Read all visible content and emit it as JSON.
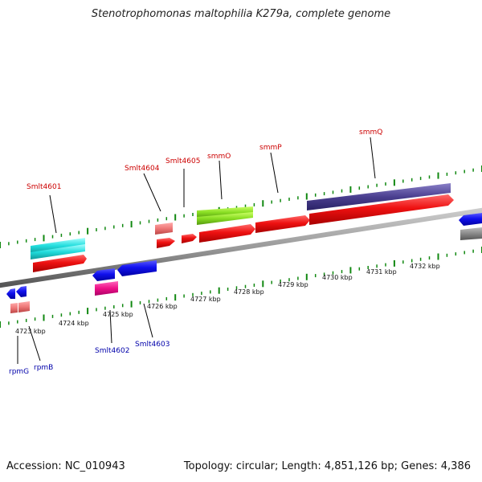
{
  "title": "Stenotrophomonas maltophilia K279a, complete genome",
  "accession": "Accession: NC_010943",
  "summary": "Topology: circular; Length: 4,851,126 bp; Genes: 4,386",
  "scale_labels": [
    "4723 kbp",
    "4724 kbp",
    "4725 kbp",
    "4726 kbp",
    "4727 kbp",
    "4728 kbp",
    "4729 kbp",
    "4730 kbp",
    "4731 kbp",
    "4732 kbp"
  ],
  "forward_gene_labels": [
    "Smlt4601",
    "Smlt4604",
    "Smlt4605",
    "smmO",
    "smmP",
    "smmQ"
  ],
  "reverse_gene_labels": [
    "rpmG",
    "rpmB",
    "Smlt4602",
    "Smlt4603"
  ],
  "colors": {
    "cds": "#ee1111",
    "forward_label": "#cc0000",
    "reverse_label": "#0000aa",
    "tick": "#118811",
    "backbone": "#8a8a8a"
  }
}
